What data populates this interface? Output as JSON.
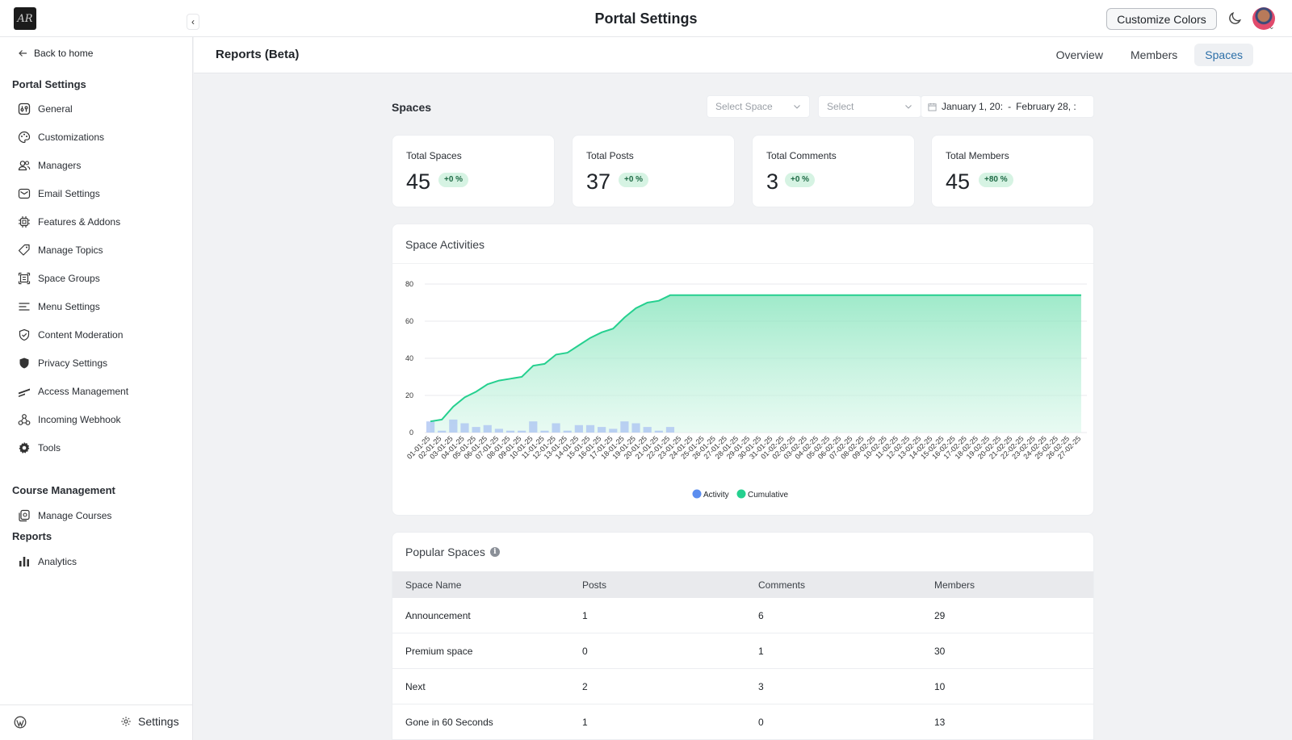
{
  "header": {
    "logo_text": "AR",
    "title": "Portal Settings",
    "customize_label": "Customize Colors"
  },
  "sidebar": {
    "back_label": "Back to home",
    "portal_section": "Portal Settings",
    "items": [
      {
        "label": "General",
        "icon": "general-icon"
      },
      {
        "label": "Customizations",
        "icon": "palette-icon"
      },
      {
        "label": "Managers",
        "icon": "users-icon"
      },
      {
        "label": "Email Settings",
        "icon": "mail-icon"
      },
      {
        "label": "Features & Addons",
        "icon": "chip-icon"
      },
      {
        "label": "Manage Topics",
        "icon": "tag-icon"
      },
      {
        "label": "Space Groups",
        "icon": "group-icon"
      },
      {
        "label": "Menu Settings",
        "icon": "menu-icon"
      },
      {
        "label": "Content Moderation",
        "icon": "shield-check-icon"
      },
      {
        "label": "Privacy Settings",
        "icon": "shield-icon"
      },
      {
        "label": "Access Management",
        "icon": "access-icon"
      },
      {
        "label": "Incoming Webhook",
        "icon": "webhook-icon"
      },
      {
        "label": "Tools",
        "icon": "gear-icon"
      }
    ],
    "course_section": "Course Management",
    "course_items": [
      {
        "label": "Manage Courses",
        "icon": "courses-icon"
      }
    ],
    "reports_section": "Reports",
    "reports_items": [
      {
        "label": "Analytics",
        "icon": "bar-chart-icon"
      }
    ],
    "footer_settings": "Settings"
  },
  "page": {
    "title": "Reports (Beta)",
    "tabs": [
      "Overview",
      "Members",
      "Spaces"
    ],
    "active_tab": "Spaces"
  },
  "filters": {
    "label": "Spaces",
    "space_placeholder": "Select Space",
    "select_placeholder": "Select",
    "date_start": "January 1, 20:",
    "date_sep": "-",
    "date_end": "February 28, :"
  },
  "stats": [
    {
      "label": "Total Spaces",
      "value": "45",
      "change": "+0 %"
    },
    {
      "label": "Total Posts",
      "value": "37",
      "change": "+0 %"
    },
    {
      "label": "Total Comments",
      "value": "3",
      "change": "+0 %"
    },
    {
      "label": "Total Members",
      "value": "45",
      "change": "+80 %"
    }
  ],
  "chart_data": {
    "type": "bar",
    "title": "Space Activities",
    "xlabel": "",
    "ylabel": "",
    "ylim": [
      0,
      80
    ],
    "yticks": [
      0,
      20,
      40,
      60,
      80
    ],
    "grid": true,
    "legend_position": "bottom-center",
    "categories": [
      "01-01-25",
      "02-01-25",
      "03-01-25",
      "04-01-25",
      "05-01-25",
      "06-01-25",
      "07-01-25",
      "08-01-25",
      "09-01-25",
      "10-01-25",
      "11-01-25",
      "12-01-25",
      "13-01-25",
      "14-01-25",
      "15-01-25",
      "16-01-25",
      "17-01-25",
      "18-01-25",
      "19-01-25",
      "20-01-25",
      "21-01-25",
      "22-01-25",
      "23-01-25",
      "24-01-25",
      "25-01-25",
      "26-01-25",
      "27-01-25",
      "28-01-25",
      "29-01-25",
      "30-01-25",
      "31-01-25",
      "01-02-25",
      "02-02-25",
      "03-02-25",
      "04-02-25",
      "05-02-25",
      "06-02-25",
      "07-02-25",
      "08-02-25",
      "09-02-25",
      "10-02-25",
      "11-02-25",
      "12-02-25",
      "13-02-25",
      "14-02-25",
      "15-02-25",
      "16-02-25",
      "17-02-25",
      "18-02-25",
      "19-02-25",
      "20-02-25",
      "21-02-25",
      "22-02-25",
      "23-02-25",
      "24-02-25",
      "25-02-25",
      "26-02-25",
      "27-02-25"
    ],
    "series": [
      {
        "name": "Activity",
        "color": "#5b8def",
        "values": [
          6,
          1,
          7,
          5,
          3,
          4,
          2,
          1,
          1,
          6,
          1,
          5,
          1,
          4,
          4,
          3,
          2,
          6,
          5,
          3,
          1,
          3,
          0,
          0,
          0,
          0,
          0,
          0,
          0,
          0,
          0,
          0,
          0,
          0,
          0,
          0,
          0,
          0,
          0,
          0,
          0,
          0,
          0,
          0,
          0,
          0,
          0,
          0,
          0,
          0,
          0,
          0,
          0,
          0,
          0,
          0,
          0,
          0
        ]
      },
      {
        "name": "Cumulative",
        "color": "#25d08f",
        "values": [
          6,
          7,
          14,
          19,
          22,
          26,
          28,
          29,
          30,
          36,
          37,
          42,
          43,
          47,
          51,
          54,
          56,
          62,
          67,
          70,
          71,
          74,
          74,
          74,
          74,
          74,
          74,
          74,
          74,
          74,
          74,
          74,
          74,
          74,
          74,
          74,
          74,
          74,
          74,
          74,
          74,
          74,
          74,
          74,
          74,
          74,
          74,
          74,
          74,
          74,
          74,
          74,
          74,
          74,
          74,
          74,
          74,
          74
        ]
      }
    ]
  },
  "popular": {
    "title": "Popular Spaces",
    "columns": [
      "Space Name",
      "Posts",
      "Comments",
      "Members"
    ],
    "rows": [
      [
        "Announcement",
        "1",
        "6",
        "29"
      ],
      [
        "Premium space",
        "0",
        "1",
        "30"
      ],
      [
        "Next",
        "2",
        "3",
        "10"
      ],
      [
        "Gone in 60 Seconds",
        "1",
        "0",
        "13"
      ]
    ]
  },
  "colors": {
    "accent": "#2c6fa8",
    "badge_bg": "#d6f3e3",
    "badge_text": "#1f6b46"
  }
}
